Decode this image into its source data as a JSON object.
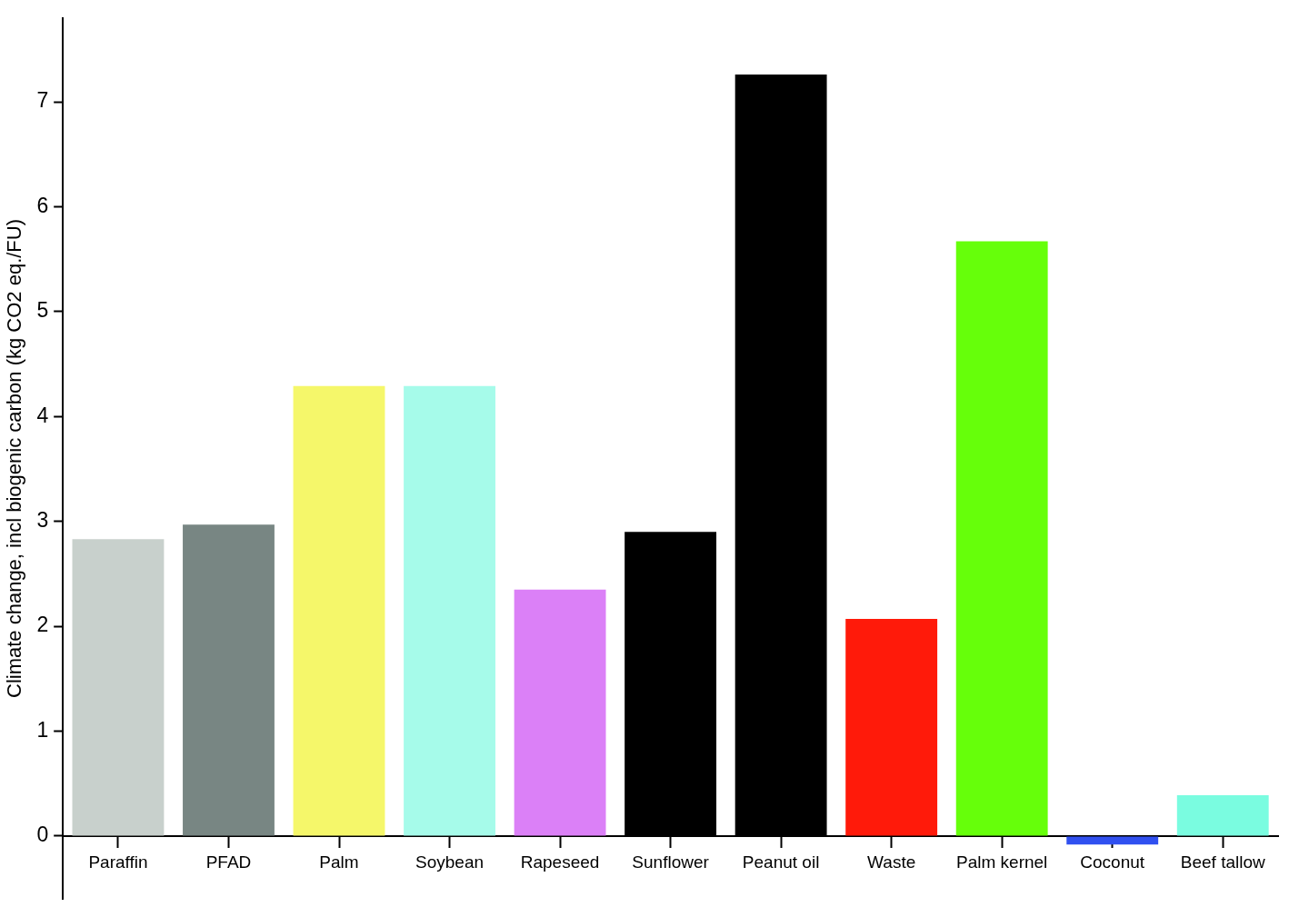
{
  "chart_data": {
    "type": "bar",
    "y_label": "Climate change, incl biogenic carbon (kg CO2 eq./FU)",
    "categories": [
      "Paraffin",
      "PFAD",
      "Palm",
      "Soybean",
      "Rapeseed",
      "Sunflower",
      "Peanut oil",
      "Waste",
      "Palm kernel",
      "Coconut",
      "Beef tallow"
    ],
    "values": [
      2.83,
      2.97,
      4.29,
      4.29,
      2.35,
      2.9,
      7.26,
      2.07,
      5.67,
      -0.08,
      0.39
    ],
    "colors": [
      "#c8d0cc",
      "#788683",
      "#f5f76a",
      "#a6fbea",
      "#db80f7",
      "#000000",
      "#000000",
      "#ff1a0a",
      "#66ff0a",
      "#3050f0",
      "#7afce0"
    ],
    "ylim": [
      -0.6,
      7.8
    ],
    "yticks": [
      0,
      1,
      2,
      3,
      4,
      5,
      6,
      7
    ],
    "grid": false
  }
}
